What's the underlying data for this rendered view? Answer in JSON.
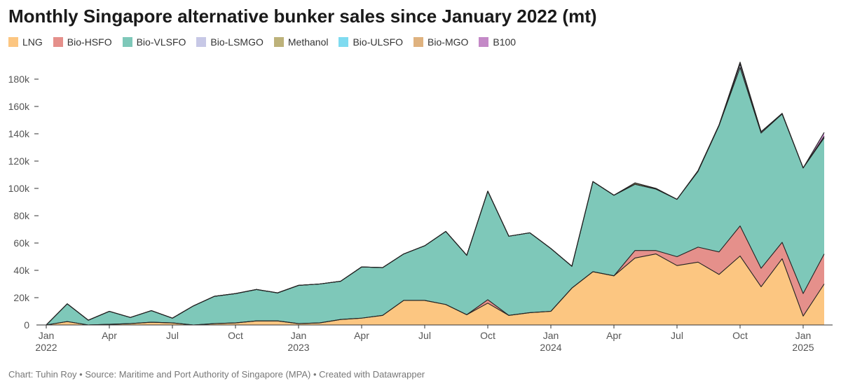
{
  "chart_data": {
    "type": "area",
    "stacked": true,
    "title": "Monthly Singapore alternative bunker sales since January 2022 (mt)",
    "y_unit_suffix": "k",
    "ylim": [
      0,
      200000
    ],
    "yticks": [
      0,
      20000,
      40000,
      60000,
      80000,
      100000,
      120000,
      140000,
      160000,
      180000
    ],
    "ytick_labels": [
      "0",
      "20k",
      "40k",
      "60k",
      "80k",
      "100k",
      "120k",
      "140k",
      "160k",
      "180k"
    ],
    "x": [
      "2022-01",
      "2022-02",
      "2022-03",
      "2022-04",
      "2022-05",
      "2022-06",
      "2022-07",
      "2022-08",
      "2022-09",
      "2022-10",
      "2022-11",
      "2022-12",
      "2023-01",
      "2023-02",
      "2023-03",
      "2023-04",
      "2023-05",
      "2023-06",
      "2023-07",
      "2023-08",
      "2023-09",
      "2023-10",
      "2023-11",
      "2023-12",
      "2024-01",
      "2024-02",
      "2024-03",
      "2024-04",
      "2024-05",
      "2024-06",
      "2024-07",
      "2024-08",
      "2024-09",
      "2024-10",
      "2024-11",
      "2024-12",
      "2025-01",
      "2025-02"
    ],
    "xticks": [
      {
        "index": 0,
        "line1": "Jan",
        "line2": "2022"
      },
      {
        "index": 3,
        "line1": "Apr",
        "line2": ""
      },
      {
        "index": 6,
        "line1": "Jul",
        "line2": ""
      },
      {
        "index": 9,
        "line1": "Oct",
        "line2": ""
      },
      {
        "index": 12,
        "line1": "Jan",
        "line2": "2023"
      },
      {
        "index": 15,
        "line1": "Apr",
        "line2": ""
      },
      {
        "index": 18,
        "line1": "Jul",
        "line2": ""
      },
      {
        "index": 21,
        "line1": "Oct",
        "line2": ""
      },
      {
        "index": 24,
        "line1": "Jan",
        "line2": "2024"
      },
      {
        "index": 27,
        "line1": "Apr",
        "line2": ""
      },
      {
        "index": 30,
        "line1": "Jul",
        "line2": ""
      },
      {
        "index": 33,
        "line1": "Oct",
        "line2": ""
      },
      {
        "index": 36,
        "line1": "Jan",
        "line2": "2025"
      }
    ],
    "series": [
      {
        "name": "LNG",
        "color": "#fcc681",
        "values": [
          0,
          2500,
          0,
          500,
          1000,
          2000,
          1500,
          0,
          1000,
          1500,
          3000,
          3000,
          1000,
          1500,
          4000,
          5000,
          7000,
          18000,
          18000,
          15000,
          7500,
          16000,
          7000,
          9000,
          10000,
          27000,
          39000,
          36000,
          49000,
          52000,
          43500,
          46000,
          37000,
          50500,
          28000,
          48500,
          6500,
          30000
        ]
      },
      {
        "name": "Bio-HSFO",
        "color": "#e5908b",
        "values": [
          0,
          0,
          0,
          0,
          0,
          0,
          0,
          0,
          0,
          0,
          0,
          0,
          0,
          0,
          0,
          0,
          0,
          0,
          0,
          0,
          0,
          2500,
          0,
          0,
          0,
          0,
          0,
          0,
          5500,
          2500,
          6500,
          11000,
          16500,
          22000,
          13500,
          12000,
          16500,
          22000
        ]
      },
      {
        "name": "Bio-VLSFO",
        "color": "#7ec8b9",
        "values": [
          0,
          13000,
          3500,
          9500,
          4500,
          8500,
          3500,
          14000,
          20000,
          21500,
          23000,
          20500,
          28000,
          28500,
          28000,
          37500,
          35000,
          34000,
          40000,
          53500,
          43500,
          79500,
          58000,
          58500,
          46000,
          16000,
          66000,
          59000,
          48500,
          45000,
          42000,
          55500,
          92500,
          116000,
          99000,
          94000,
          92000,
          85000
        ]
      },
      {
        "name": "Bio-LSMGO",
        "color": "#c7c8e6",
        "values": [
          0,
          0,
          0,
          0,
          0,
          0,
          0,
          0,
          0,
          0,
          0,
          0,
          0,
          0,
          0,
          0,
          0,
          0,
          0,
          0,
          0,
          0,
          0,
          0,
          0,
          0,
          0,
          0,
          0,
          0,
          0,
          0,
          0,
          2500,
          1000,
          0,
          0,
          1000
        ]
      },
      {
        "name": "Methanol",
        "color": "#bdb27a",
        "values": [
          0,
          0,
          0,
          0,
          0,
          0,
          0,
          0,
          0,
          0,
          0,
          0,
          0,
          0,
          0,
          0,
          0,
          0,
          0,
          0,
          0,
          0,
          0,
          0,
          0,
          0,
          0,
          0,
          1000,
          500,
          0,
          500,
          500,
          500,
          0,
          0,
          0,
          0
        ]
      },
      {
        "name": "Bio-ULSFO",
        "color": "#7fdbf0",
        "values": [
          0,
          0,
          0,
          0,
          0,
          0,
          0,
          0,
          0,
          0,
          0,
          0,
          0,
          0,
          0,
          0,
          0,
          0,
          0,
          0,
          0,
          0,
          0,
          0,
          0,
          0,
          0,
          0,
          0,
          0,
          0,
          0,
          0,
          0,
          0,
          0,
          0,
          0
        ]
      },
      {
        "name": "Bio-MGO",
        "color": "#dfb27f",
        "values": [
          0,
          0,
          0,
          0,
          0,
          0,
          0,
          0,
          0,
          0,
          0,
          0,
          0,
          0,
          0,
          0,
          0,
          0,
          0,
          0,
          0,
          0,
          0,
          0,
          0,
          0,
          0,
          0,
          0,
          0,
          0,
          0,
          0,
          0,
          0,
          0,
          0,
          0
        ]
      },
      {
        "name": "B100",
        "color": "#c489c7",
        "values": [
          0,
          0,
          0,
          0,
          0,
          0,
          0,
          0,
          0,
          0,
          0,
          0,
          0,
          0,
          0,
          0,
          0,
          0,
          0,
          0,
          0,
          0,
          0,
          0,
          0,
          0,
          0,
          0,
          0,
          0,
          0,
          0,
          0,
          1000,
          0,
          500,
          0,
          3000
        ]
      }
    ]
  },
  "footer": {
    "text": "Chart: Tuhin Roy • Source: Maritime and Port Authority of Singapore (MPA) • Created with Datawrapper"
  }
}
